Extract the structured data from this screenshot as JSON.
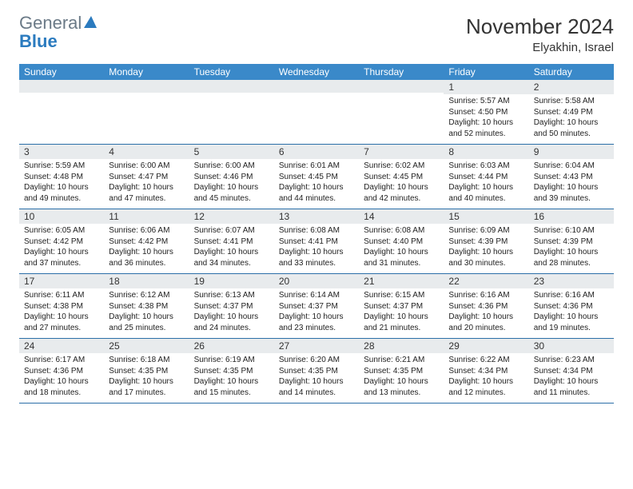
{
  "logo": {
    "text1": "General",
    "text2": "Blue"
  },
  "title": "November 2024",
  "location": "Elyakhin, Israel",
  "colors": {
    "header_bg": "#3a89c9",
    "band_bg": "#e8ebed",
    "rule": "#2b6fa8",
    "logo_gray": "#6b7a87",
    "logo_blue": "#2b7bbf"
  },
  "day_names": [
    "Sunday",
    "Monday",
    "Tuesday",
    "Wednesday",
    "Thursday",
    "Friday",
    "Saturday"
  ],
  "weeks": [
    [
      null,
      null,
      null,
      null,
      null,
      {
        "n": "1",
        "sunrise": "5:57 AM",
        "sunset": "4:50 PM",
        "daylight": "10 hours and 52 minutes."
      },
      {
        "n": "2",
        "sunrise": "5:58 AM",
        "sunset": "4:49 PM",
        "daylight": "10 hours and 50 minutes."
      }
    ],
    [
      {
        "n": "3",
        "sunrise": "5:59 AM",
        "sunset": "4:48 PM",
        "daylight": "10 hours and 49 minutes."
      },
      {
        "n": "4",
        "sunrise": "6:00 AM",
        "sunset": "4:47 PM",
        "daylight": "10 hours and 47 minutes."
      },
      {
        "n": "5",
        "sunrise": "6:00 AM",
        "sunset": "4:46 PM",
        "daylight": "10 hours and 45 minutes."
      },
      {
        "n": "6",
        "sunrise": "6:01 AM",
        "sunset": "4:45 PM",
        "daylight": "10 hours and 44 minutes."
      },
      {
        "n": "7",
        "sunrise": "6:02 AM",
        "sunset": "4:45 PM",
        "daylight": "10 hours and 42 minutes."
      },
      {
        "n": "8",
        "sunrise": "6:03 AM",
        "sunset": "4:44 PM",
        "daylight": "10 hours and 40 minutes."
      },
      {
        "n": "9",
        "sunrise": "6:04 AM",
        "sunset": "4:43 PM",
        "daylight": "10 hours and 39 minutes."
      }
    ],
    [
      {
        "n": "10",
        "sunrise": "6:05 AM",
        "sunset": "4:42 PM",
        "daylight": "10 hours and 37 minutes."
      },
      {
        "n": "11",
        "sunrise": "6:06 AM",
        "sunset": "4:42 PM",
        "daylight": "10 hours and 36 minutes."
      },
      {
        "n": "12",
        "sunrise": "6:07 AM",
        "sunset": "4:41 PM",
        "daylight": "10 hours and 34 minutes."
      },
      {
        "n": "13",
        "sunrise": "6:08 AM",
        "sunset": "4:41 PM",
        "daylight": "10 hours and 33 minutes."
      },
      {
        "n": "14",
        "sunrise": "6:08 AM",
        "sunset": "4:40 PM",
        "daylight": "10 hours and 31 minutes."
      },
      {
        "n": "15",
        "sunrise": "6:09 AM",
        "sunset": "4:39 PM",
        "daylight": "10 hours and 30 minutes."
      },
      {
        "n": "16",
        "sunrise": "6:10 AM",
        "sunset": "4:39 PM",
        "daylight": "10 hours and 28 minutes."
      }
    ],
    [
      {
        "n": "17",
        "sunrise": "6:11 AM",
        "sunset": "4:38 PM",
        "daylight": "10 hours and 27 minutes."
      },
      {
        "n": "18",
        "sunrise": "6:12 AM",
        "sunset": "4:38 PM",
        "daylight": "10 hours and 25 minutes."
      },
      {
        "n": "19",
        "sunrise": "6:13 AM",
        "sunset": "4:37 PM",
        "daylight": "10 hours and 24 minutes."
      },
      {
        "n": "20",
        "sunrise": "6:14 AM",
        "sunset": "4:37 PM",
        "daylight": "10 hours and 23 minutes."
      },
      {
        "n": "21",
        "sunrise": "6:15 AM",
        "sunset": "4:37 PM",
        "daylight": "10 hours and 21 minutes."
      },
      {
        "n": "22",
        "sunrise": "6:16 AM",
        "sunset": "4:36 PM",
        "daylight": "10 hours and 20 minutes."
      },
      {
        "n": "23",
        "sunrise": "6:16 AM",
        "sunset": "4:36 PM",
        "daylight": "10 hours and 19 minutes."
      }
    ],
    [
      {
        "n": "24",
        "sunrise": "6:17 AM",
        "sunset": "4:36 PM",
        "daylight": "10 hours and 18 minutes."
      },
      {
        "n": "25",
        "sunrise": "6:18 AM",
        "sunset": "4:35 PM",
        "daylight": "10 hours and 17 minutes."
      },
      {
        "n": "26",
        "sunrise": "6:19 AM",
        "sunset": "4:35 PM",
        "daylight": "10 hours and 15 minutes."
      },
      {
        "n": "27",
        "sunrise": "6:20 AM",
        "sunset": "4:35 PM",
        "daylight": "10 hours and 14 minutes."
      },
      {
        "n": "28",
        "sunrise": "6:21 AM",
        "sunset": "4:35 PM",
        "daylight": "10 hours and 13 minutes."
      },
      {
        "n": "29",
        "sunrise": "6:22 AM",
        "sunset": "4:34 PM",
        "daylight": "10 hours and 12 minutes."
      },
      {
        "n": "30",
        "sunrise": "6:23 AM",
        "sunset": "4:34 PM",
        "daylight": "10 hours and 11 minutes."
      }
    ]
  ],
  "labels": {
    "sunrise": "Sunrise:",
    "sunset": "Sunset:",
    "daylight": "Daylight:"
  }
}
